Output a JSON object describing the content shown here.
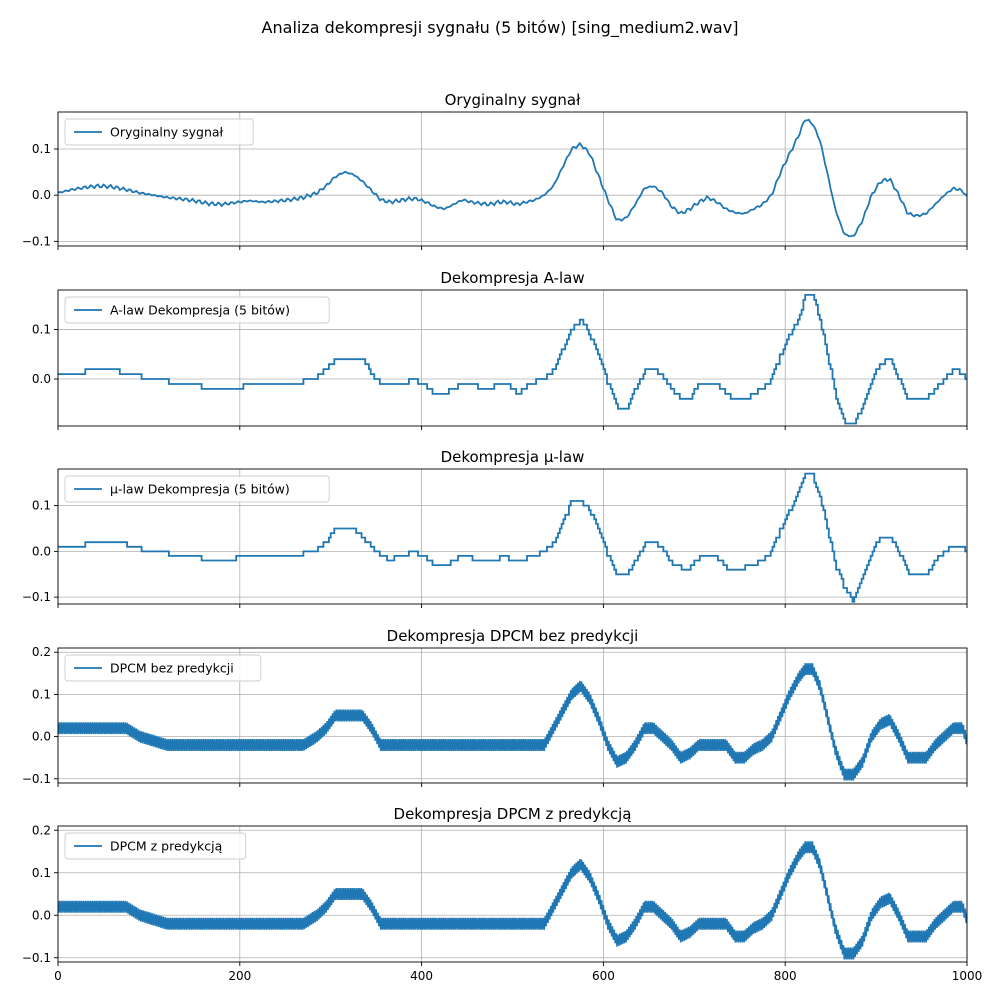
{
  "figure": {
    "suptitle": "Analiza dekompresji sygnału (5 bitów) [sing_medium2.wav]",
    "line_color": "#1f77b4",
    "grid_color": "#b0b0b0"
  },
  "chart_data": [
    {
      "type": "line",
      "title": "Oryginalny sygnał",
      "legend": "Oryginalny sygnał",
      "legend_loc": "upper-left",
      "grid": true,
      "xlim": [
        0,
        1000
      ],
      "ylim": [
        -0.11,
        0.18
      ],
      "yticks": [
        -0.1,
        0.0,
        0.1
      ],
      "ytick_labels": [
        "−0.1",
        "0.0",
        "0.1"
      ],
      "style": "smooth",
      "x": [
        0,
        15,
        30,
        45,
        60,
        75,
        90,
        105,
        120,
        135,
        150,
        165,
        180,
        195,
        210,
        225,
        240,
        255,
        270,
        285,
        295,
        305,
        315,
        325,
        335,
        345,
        355,
        365,
        375,
        385,
        395,
        405,
        415,
        425,
        435,
        445,
        455,
        465,
        475,
        485,
        495,
        505,
        515,
        525,
        535,
        545,
        555,
        565,
        575,
        585,
        595,
        605,
        615,
        625,
        635,
        645,
        655,
        665,
        675,
        685,
        695,
        705,
        715,
        725,
        735,
        745,
        755,
        765,
        775,
        785,
        795,
        805,
        815,
        822,
        830,
        838,
        845,
        855,
        865,
        875,
        885,
        895,
        905,
        915,
        925,
        935,
        945,
        955,
        965,
        975,
        985,
        995,
        1000
      ],
      "y": [
        0.005,
        0.012,
        0.017,
        0.02,
        0.018,
        0.012,
        0.005,
        0.0,
        -0.005,
        -0.008,
        -0.012,
        -0.018,
        -0.02,
        -0.016,
        -0.012,
        -0.015,
        -0.013,
        -0.01,
        -0.005,
        0.005,
        0.02,
        0.04,
        0.05,
        0.045,
        0.03,
        0.01,
        -0.01,
        -0.015,
        -0.012,
        -0.008,
        -0.008,
        -0.015,
        -0.025,
        -0.03,
        -0.02,
        -0.01,
        -0.015,
        -0.018,
        -0.02,
        -0.015,
        -0.015,
        -0.02,
        -0.015,
        -0.01,
        0.0,
        0.02,
        0.06,
        0.1,
        0.11,
        0.09,
        0.04,
        -0.01,
        -0.055,
        -0.05,
        -0.02,
        0.015,
        0.02,
        0.005,
        -0.025,
        -0.04,
        -0.03,
        -0.015,
        -0.005,
        -0.015,
        -0.03,
        -0.038,
        -0.04,
        -0.03,
        -0.02,
        0.0,
        0.05,
        0.09,
        0.13,
        0.165,
        0.155,
        0.12,
        0.06,
        -0.03,
        -0.085,
        -0.09,
        -0.055,
        0.0,
        0.03,
        0.035,
        0.0,
        -0.04,
        -0.045,
        -0.04,
        -0.02,
        0.0,
        0.015,
        0.01,
        -0.005
      ]
    },
    {
      "type": "line",
      "title": "Dekompresja A-law",
      "legend": "A-law Dekompresja (5 bitów)",
      "legend_loc": "upper-left",
      "grid": true,
      "xlim": [
        0,
        1000
      ],
      "ylim": [
        -0.095,
        0.18
      ],
      "yticks": [
        0.0,
        0.1
      ],
      "ytick_labels": [
        "0.0",
        "0.1"
      ],
      "style": "step",
      "x": [
        0,
        15,
        30,
        45,
        60,
        75,
        90,
        105,
        120,
        135,
        150,
        165,
        180,
        195,
        210,
        225,
        240,
        255,
        270,
        285,
        295,
        305,
        315,
        325,
        335,
        345,
        355,
        365,
        375,
        385,
        395,
        405,
        415,
        425,
        435,
        445,
        455,
        465,
        475,
        485,
        495,
        505,
        515,
        525,
        535,
        545,
        555,
        565,
        575,
        585,
        595,
        605,
        615,
        625,
        635,
        645,
        655,
        665,
        675,
        685,
        695,
        705,
        715,
        725,
        735,
        745,
        755,
        765,
        775,
        785,
        795,
        805,
        815,
        822,
        830,
        838,
        845,
        855,
        865,
        875,
        885,
        895,
        905,
        915,
        925,
        935,
        945,
        955,
        965,
        975,
        985,
        995,
        1000
      ],
      "y": [
        0.01,
        0.01,
        0.015,
        0.02,
        0.02,
        0.01,
        0.005,
        0.0,
        -0.005,
        -0.01,
        -0.01,
        -0.02,
        -0.02,
        -0.02,
        -0.01,
        -0.015,
        -0.01,
        -0.01,
        -0.005,
        0.005,
        0.02,
        0.04,
        0.04,
        0.04,
        0.04,
        0.01,
        -0.01,
        -0.015,
        -0.01,
        -0.005,
        -0.005,
        -0.015,
        -0.03,
        -0.03,
        -0.02,
        -0.005,
        -0.01,
        -0.02,
        -0.02,
        -0.01,
        -0.01,
        -0.03,
        -0.015,
        -0.005,
        0.0,
        0.02,
        0.06,
        0.1,
        0.12,
        0.09,
        0.04,
        -0.01,
        -0.06,
        -0.06,
        -0.02,
        0.015,
        0.02,
        0.005,
        -0.02,
        -0.04,
        -0.04,
        -0.01,
        -0.005,
        -0.01,
        -0.03,
        -0.04,
        -0.04,
        -0.03,
        -0.02,
        0.0,
        0.05,
        0.09,
        0.12,
        0.17,
        0.17,
        0.12,
        0.06,
        -0.03,
        -0.09,
        -0.09,
        -0.06,
        0.0,
        0.03,
        0.04,
        0.0,
        -0.04,
        -0.04,
        -0.04,
        -0.02,
        0.0,
        0.02,
        0.01,
        -0.005
      ]
    },
    {
      "type": "line",
      "title": "Dekompresja μ-law",
      "legend": "μ-law Dekompresja (5 bitów)",
      "legend_loc": "upper-left",
      "grid": true,
      "xlim": [
        0,
        1000
      ],
      "ylim": [
        -0.115,
        0.18
      ],
      "yticks": [
        -0.1,
        0.0,
        0.1
      ],
      "ytick_labels": [
        "−0.1",
        "0.0",
        "0.1"
      ],
      "style": "step",
      "x": [
        0,
        15,
        30,
        45,
        60,
        75,
        90,
        105,
        120,
        135,
        150,
        165,
        180,
        195,
        210,
        225,
        240,
        255,
        270,
        285,
        295,
        305,
        315,
        325,
        335,
        345,
        355,
        365,
        375,
        385,
        395,
        405,
        415,
        425,
        435,
        445,
        455,
        465,
        475,
        485,
        495,
        505,
        515,
        525,
        535,
        545,
        555,
        565,
        575,
        585,
        595,
        605,
        615,
        625,
        635,
        645,
        655,
        665,
        675,
        685,
        695,
        705,
        715,
        725,
        735,
        745,
        755,
        765,
        775,
        785,
        795,
        805,
        815,
        822,
        830,
        838,
        845,
        855,
        865,
        875,
        885,
        895,
        905,
        915,
        925,
        935,
        945,
        955,
        965,
        975,
        985,
        995,
        1000
      ],
      "y": [
        0.01,
        0.01,
        0.015,
        0.015,
        0.015,
        0.015,
        0.005,
        0.0,
        -0.005,
        -0.01,
        -0.01,
        -0.02,
        -0.02,
        -0.015,
        -0.01,
        -0.015,
        -0.01,
        -0.01,
        -0.005,
        0.005,
        0.02,
        0.05,
        0.055,
        0.05,
        0.03,
        0.01,
        -0.01,
        -0.02,
        -0.01,
        -0.005,
        -0.005,
        -0.015,
        -0.03,
        -0.035,
        -0.02,
        -0.01,
        -0.015,
        -0.02,
        -0.02,
        -0.015,
        -0.015,
        -0.02,
        -0.015,
        -0.01,
        0.0,
        0.02,
        0.06,
        0.11,
        0.11,
        0.09,
        0.04,
        -0.01,
        -0.055,
        -0.055,
        -0.02,
        0.015,
        0.02,
        0.005,
        -0.025,
        -0.035,
        -0.035,
        -0.015,
        -0.005,
        -0.015,
        -0.035,
        -0.035,
        -0.035,
        -0.03,
        -0.02,
        0.0,
        0.05,
        0.09,
        0.13,
        0.165,
        0.165,
        0.12,
        0.06,
        -0.03,
        -0.08,
        -0.11,
        -0.055,
        0.0,
        0.03,
        0.035,
        0.0,
        -0.05,
        -0.05,
        -0.05,
        -0.02,
        0.0,
        0.015,
        0.01,
        -0.005
      ]
    },
    {
      "type": "line",
      "title": "Dekompresja DPCM bez predykcji",
      "legend": "DPCM bez predykcji",
      "legend_loc": "upper-left",
      "grid": true,
      "xlim": [
        0,
        1000
      ],
      "ylim": [
        -0.11,
        0.21
      ],
      "yticks": [
        -0.1,
        0.0,
        0.1,
        0.2
      ],
      "ytick_labels": [
        "−0.1",
        "0.0",
        "0.1",
        "0.2"
      ],
      "style": "dpcm",
      "x": [
        0,
        15,
        30,
        45,
        60,
        75,
        90,
        105,
        120,
        135,
        150,
        165,
        180,
        195,
        210,
        225,
        240,
        255,
        270,
        285,
        295,
        305,
        315,
        325,
        335,
        345,
        355,
        365,
        375,
        385,
        395,
        405,
        415,
        425,
        435,
        445,
        455,
        465,
        475,
        485,
        495,
        505,
        515,
        525,
        535,
        545,
        555,
        565,
        575,
        585,
        595,
        605,
        615,
        625,
        635,
        645,
        655,
        665,
        675,
        685,
        695,
        705,
        715,
        725,
        735,
        745,
        755,
        765,
        775,
        785,
        795,
        805,
        815,
        822,
        830,
        838,
        845,
        855,
        865,
        875,
        885,
        895,
        905,
        915,
        925,
        935,
        945,
        955,
        965,
        975,
        985,
        995,
        1000
      ],
      "y": [
        0.02,
        0.02,
        0.02,
        0.02,
        0.02,
        0.02,
        0.0,
        -0.01,
        -0.02,
        -0.02,
        -0.02,
        -0.02,
        -0.02,
        -0.02,
        -0.02,
        -0.02,
        -0.02,
        -0.02,
        -0.02,
        0.0,
        0.02,
        0.05,
        0.05,
        0.05,
        0.05,
        0.02,
        -0.02,
        -0.02,
        -0.02,
        -0.02,
        -0.02,
        -0.02,
        -0.02,
        -0.02,
        -0.02,
        -0.02,
        -0.02,
        -0.02,
        -0.02,
        -0.02,
        -0.02,
        -0.02,
        -0.02,
        -0.02,
        -0.02,
        0.02,
        0.06,
        0.1,
        0.12,
        0.09,
        0.04,
        -0.02,
        -0.06,
        -0.05,
        -0.02,
        0.02,
        0.02,
        0.0,
        -0.02,
        -0.05,
        -0.04,
        -0.02,
        -0.02,
        -0.02,
        -0.02,
        -0.05,
        -0.05,
        -0.03,
        -0.02,
        0.0,
        0.05,
        0.1,
        0.14,
        0.16,
        0.16,
        0.12,
        0.06,
        -0.03,
        -0.09,
        -0.09,
        -0.06,
        0.0,
        0.03,
        0.04,
        0.0,
        -0.05,
        -0.05,
        -0.05,
        -0.02,
        0.0,
        0.02,
        0.02,
        -0.01
      ]
    },
    {
      "type": "line",
      "title": "Dekompresja DPCM z predykcją",
      "legend": "DPCM z predykcją",
      "legend_loc": "upper-left",
      "grid": true,
      "xlim": [
        0,
        1000
      ],
      "ylim": [
        -0.11,
        0.21
      ],
      "yticks": [
        -0.1,
        0.0,
        0.1,
        0.2
      ],
      "ytick_labels": [
        "−0.1",
        "0.0",
        "0.1",
        "0.2"
      ],
      "xticks": [
        0,
        200,
        400,
        600,
        800,
        1000
      ],
      "xtick_labels": [
        "0",
        "200",
        "400",
        "600",
        "800",
        "1000"
      ],
      "style": "dpcm",
      "x": [
        0,
        15,
        30,
        45,
        60,
        75,
        90,
        105,
        120,
        135,
        150,
        165,
        180,
        195,
        210,
        225,
        240,
        255,
        270,
        285,
        295,
        305,
        315,
        325,
        335,
        345,
        355,
        365,
        375,
        385,
        395,
        405,
        415,
        425,
        435,
        445,
        455,
        465,
        475,
        485,
        495,
        505,
        515,
        525,
        535,
        545,
        555,
        565,
        575,
        585,
        595,
        605,
        615,
        625,
        635,
        645,
        655,
        665,
        675,
        685,
        695,
        705,
        715,
        725,
        735,
        745,
        755,
        765,
        775,
        785,
        795,
        805,
        815,
        822,
        830,
        838,
        845,
        855,
        865,
        875,
        885,
        895,
        905,
        915,
        925,
        935,
        945,
        955,
        965,
        975,
        985,
        995,
        1000
      ],
      "y": [
        0.02,
        0.02,
        0.02,
        0.02,
        0.02,
        0.02,
        0.0,
        -0.01,
        -0.02,
        -0.02,
        -0.02,
        -0.02,
        -0.02,
        -0.02,
        -0.02,
        -0.02,
        -0.02,
        -0.02,
        -0.02,
        0.0,
        0.02,
        0.05,
        0.05,
        0.05,
        0.05,
        0.02,
        -0.02,
        -0.02,
        -0.02,
        -0.02,
        -0.02,
        -0.02,
        -0.02,
        -0.02,
        -0.02,
        -0.02,
        -0.02,
        -0.02,
        -0.02,
        -0.02,
        -0.02,
        -0.02,
        -0.02,
        -0.02,
        -0.02,
        0.02,
        0.06,
        0.1,
        0.12,
        0.09,
        0.04,
        -0.02,
        -0.06,
        -0.05,
        -0.02,
        0.02,
        0.02,
        0.0,
        -0.02,
        -0.05,
        -0.04,
        -0.02,
        -0.02,
        -0.02,
        -0.02,
        -0.05,
        -0.05,
        -0.03,
        -0.02,
        0.0,
        0.05,
        0.1,
        0.14,
        0.16,
        0.16,
        0.12,
        0.06,
        -0.03,
        -0.09,
        -0.09,
        -0.06,
        0.0,
        0.03,
        0.04,
        0.0,
        -0.05,
        -0.05,
        -0.05,
        -0.02,
        0.0,
        0.02,
        0.02,
        -0.01
      ]
    }
  ]
}
